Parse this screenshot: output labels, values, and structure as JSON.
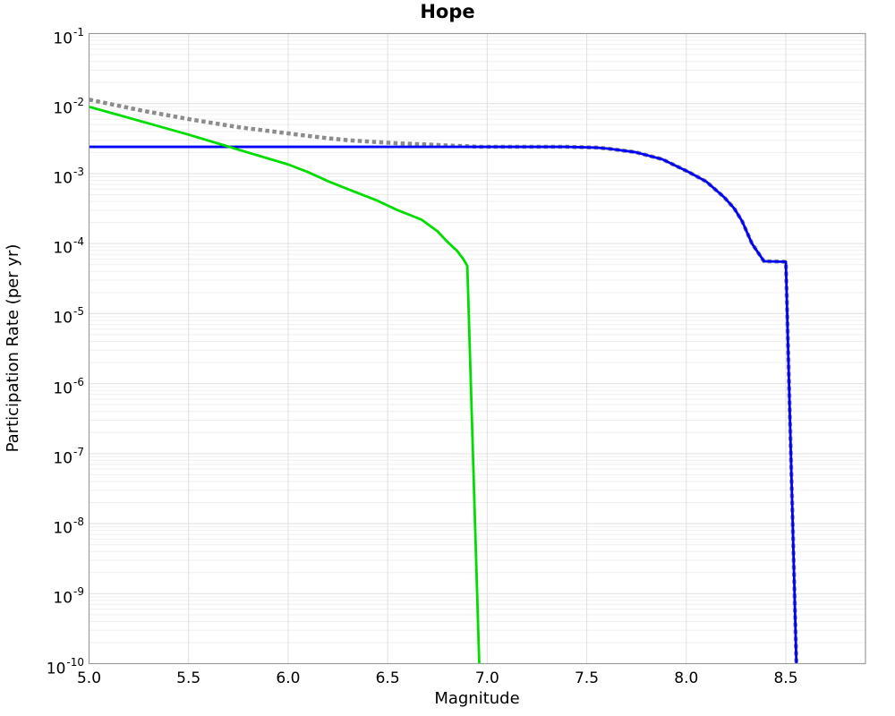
{
  "title": "Hope",
  "axes": {
    "xlabel": "Magnitude",
    "ylabel": "Participation Rate (per yr)",
    "x_tick_labels": [
      "5.0",
      "5.5",
      "6.0",
      "6.5",
      "7.0",
      "7.5",
      "8.0",
      "8.5"
    ],
    "x_tick_values": [
      5.0,
      5.5,
      6.0,
      6.5,
      7.0,
      7.5,
      8.0,
      8.5
    ],
    "y_tick_base": "10",
    "y_tick_exps": [
      "-1",
      "-2",
      "-3",
      "-4",
      "-5",
      "-6",
      "-7",
      "-8",
      "-9",
      "-10"
    ],
    "y_tick_exp_values": [
      -1,
      -2,
      -3,
      -4,
      -5,
      -6,
      -7,
      -8,
      -9,
      -10
    ]
  },
  "chart_data": {
    "type": "line",
    "title": "Hope",
    "xlabel": "Magnitude",
    "ylabel": "Participation Rate (per yr)",
    "xlim": [
      5.0,
      8.9
    ],
    "ylim": [
      1e-10,
      0.1
    ],
    "yscale": "log",
    "grid": true,
    "legend": "none",
    "layout_hints": {
      "background": "#ffffff",
      "grid_major": "#e0e0e0",
      "grid_minor": "#efefef",
      "spine": "#9b9b9b"
    },
    "series": [
      {
        "name": "total-rate-dotted-gray",
        "color": "#8c8c8c",
        "style": "dotted",
        "width": 4.5,
        "points": [
          [
            5.0,
            0.0114
          ],
          [
            5.25,
            0.0081
          ],
          [
            5.5,
            0.006
          ],
          [
            5.75,
            0.0046
          ],
          [
            6.0,
            0.00375
          ],
          [
            6.1,
            0.00345
          ],
          [
            6.2,
            0.0032
          ],
          [
            6.3,
            0.003
          ],
          [
            6.44,
            0.00283
          ],
          [
            6.55,
            0.00271
          ],
          [
            6.67,
            0.00263
          ],
          [
            6.8,
            0.00252
          ],
          [
            6.9,
            0.00246
          ],
          [
            6.96,
            0.00241
          ],
          [
            7.4,
            0.00241
          ],
          [
            7.55,
            0.00235
          ],
          [
            7.61,
            0.00227
          ],
          [
            7.745,
            0.00202
          ],
          [
            7.88,
            0.0016
          ],
          [
            8.01,
            0.00106
          ],
          [
            8.1,
            0.00077
          ],
          [
            8.19,
            0.00046
          ],
          [
            8.24,
            0.00032
          ],
          [
            8.28,
            0.00021
          ],
          [
            8.33,
            0.0001
          ],
          [
            8.39,
            5.6e-05
          ],
          [
            8.5,
            5.5e-05
          ],
          [
            8.553,
            1e-10
          ]
        ]
      },
      {
        "name": "fault-rate-solid-blue",
        "color": "#0000f8",
        "style": "solid",
        "width": 2.8,
        "points": [
          [
            5.0,
            0.00241
          ],
          [
            7.4,
            0.00241
          ],
          [
            7.55,
            0.00235
          ],
          [
            7.61,
            0.00227
          ],
          [
            7.745,
            0.00202
          ],
          [
            7.88,
            0.0016
          ],
          [
            8.01,
            0.00106
          ],
          [
            8.1,
            0.00077
          ],
          [
            8.19,
            0.00046
          ],
          [
            8.24,
            0.00032
          ],
          [
            8.28,
            0.00021
          ],
          [
            8.33,
            0.0001
          ],
          [
            8.39,
            5.6e-05
          ],
          [
            8.5,
            5.5e-05
          ],
          [
            8.553,
            1e-10
          ]
        ]
      },
      {
        "name": "gridded-rate-solid-green",
        "color": "#00dd00",
        "style": "solid",
        "width": 2.8,
        "points": [
          [
            5.0,
            0.009
          ],
          [
            5.25,
            0.0057
          ],
          [
            5.5,
            0.0036
          ],
          [
            5.75,
            0.0022
          ],
          [
            6.0,
            0.00135
          ],
          [
            6.1,
            0.00105
          ],
          [
            6.2,
            0.00078
          ],
          [
            6.3,
            0.0006
          ],
          [
            6.44,
            0.00042
          ],
          [
            6.55,
            0.0003
          ],
          [
            6.67,
            0.00022
          ],
          [
            6.75,
            0.00015
          ],
          [
            6.8,
            0.000106
          ],
          [
            6.85,
            7.8e-05
          ],
          [
            6.88,
            6e-05
          ],
          [
            6.9,
            4.8e-05
          ],
          [
            6.96,
            1e-10
          ]
        ]
      }
    ]
  }
}
